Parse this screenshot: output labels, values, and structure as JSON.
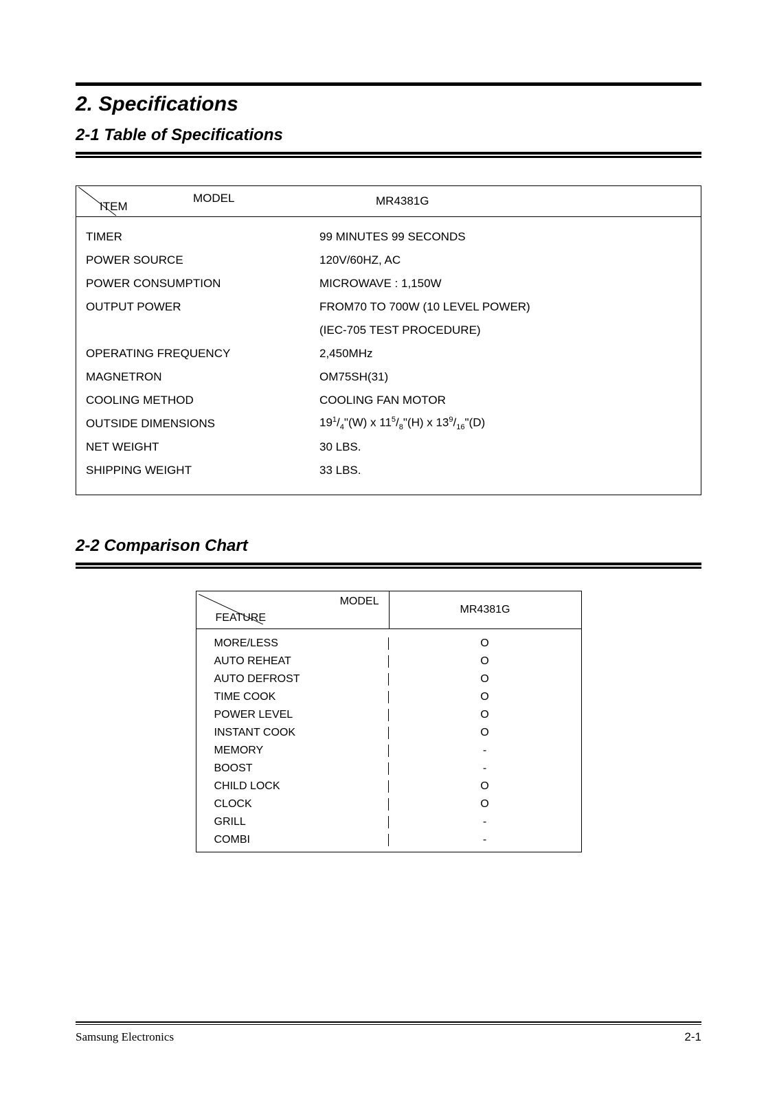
{
  "section_title": "2. Specifications",
  "sub1_title": "2-1 Table of Specifications",
  "sub2_title": "2-2 Comparison Chart",
  "spec_table": {
    "header_item": "ITEM",
    "header_model": "MODEL",
    "header_value": "MR4381G",
    "rows": [
      {
        "label": "TIMER",
        "value": "99 MINUTES 99 SECONDS"
      },
      {
        "label": "POWER SOURCE",
        "value": "120V/60HZ, AC"
      },
      {
        "label": "POWER CONSUMPTION",
        "value": "MICROWAVE : 1,150W"
      },
      {
        "label": "OUTPUT POWER",
        "value": "FROM70 TO 700W (10 LEVEL POWER)"
      },
      {
        "label": "",
        "value": "(IEC-705 TEST PROCEDURE)"
      },
      {
        "label": "OPERATING FREQUENCY",
        "value": "2,450MHz"
      },
      {
        "label": "MAGNETRON",
        "value": "OM75SH(31)"
      },
      {
        "label": "COOLING METHOD",
        "value": "COOLING FAN MOTOR"
      },
      {
        "label": "OUTSIDE DIMENSIONS",
        "value": "__DIM__"
      },
      {
        "label": "NET WEIGHT",
        "value": "30 LBS."
      },
      {
        "label": "SHIPPING WEIGHT",
        "value": "33 LBS."
      }
    ],
    "dim_parts": {
      "w_int": "19",
      "w_num": "1",
      "w_den": "4",
      "h_int": "11",
      "h_num": "5",
      "h_den": "8",
      "d_int": "13",
      "d_num": "9",
      "d_den": "16"
    }
  },
  "comp_table": {
    "header_feature": "FEATURE",
    "header_model": "MODEL",
    "header_col": "MR4381G",
    "rows": [
      {
        "feature": "MORE/LESS",
        "val": "O"
      },
      {
        "feature": "AUTO REHEAT",
        "val": "O"
      },
      {
        "feature": "AUTO DEFROST",
        "val": "O"
      },
      {
        "feature": "TIME COOK",
        "val": "O"
      },
      {
        "feature": "POWER LEVEL",
        "val": "O"
      },
      {
        "feature": "INSTANT COOK",
        "val": "O"
      },
      {
        "feature": "MEMORY",
        "val": "-"
      },
      {
        "feature": "BOOST",
        "val": "-"
      },
      {
        "feature": "CHILD LOCK",
        "val": "O"
      },
      {
        "feature": "CLOCK",
        "val": "O"
      },
      {
        "feature": "GRILL",
        "val": "-"
      },
      {
        "feature": "COMBI",
        "val": "-"
      }
    ]
  },
  "footer_left": "Samsung Electronics",
  "footer_right": "2-1",
  "colors": {
    "text": "#000000",
    "bg": "#ffffff"
  }
}
